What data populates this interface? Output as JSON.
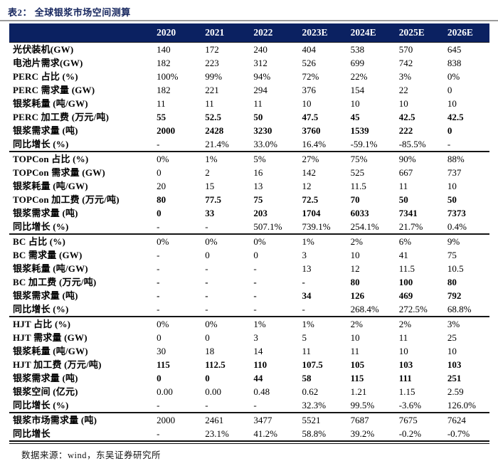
{
  "caption": "表2： 全球银浆市场空间测算",
  "source_note": "数据来源：wind，东吴证券研究所",
  "colors": {
    "header_bg": "#0b2161",
    "caption_text": "#16265e"
  },
  "table": {
    "year_columns": [
      "2020",
      "2021",
      "2022",
      "2023E",
      "2024E",
      "2025E",
      "2026E"
    ],
    "sections": [
      {
        "name": "perc",
        "rows": [
          {
            "label": "光伏装机(GW)",
            "bold": false,
            "values": [
              "140",
              "172",
              "240",
              "404",
              "538",
              "570",
              "645"
            ]
          },
          {
            "label": "电池片需求(GW)",
            "bold": false,
            "values": [
              "182",
              "223",
              "312",
              "526",
              "699",
              "742",
              "838"
            ]
          },
          {
            "label": "PERC 占比 (%)",
            "bold": false,
            "values": [
              "100%",
              "99%",
              "94%",
              "72%",
              "22%",
              "3%",
              "0%"
            ]
          },
          {
            "label": "PERC 需求量 (GW)",
            "bold": false,
            "values": [
              "182",
              "221",
              "294",
              "376",
              "154",
              "22",
              "0"
            ]
          },
          {
            "label": "银浆耗量 (吨/GW)",
            "bold": false,
            "values": [
              "11",
              "11",
              "11",
              "10",
              "10",
              "10",
              "10"
            ]
          },
          {
            "label": "PERC 加工费 (万元/吨)",
            "bold": true,
            "values": [
              "55",
              "52.5",
              "50",
              "47.5",
              "45",
              "42.5",
              "42.5"
            ]
          },
          {
            "label": "银浆需求量 (吨)",
            "bold": true,
            "values": [
              "2000",
              "2428",
              "3230",
              "3760",
              "1539",
              "222",
              "0"
            ]
          },
          {
            "label": "同比增长 (%)",
            "bold": false,
            "values": [
              "-",
              "21.4%",
              "33.0%",
              "16.4%",
              "-59.1%",
              "-85.5%",
              "-"
            ]
          }
        ]
      },
      {
        "name": "topcon",
        "rows": [
          {
            "label": "TOPCon 占比 (%)",
            "bold": false,
            "values": [
              "0%",
              "1%",
              "5%",
              "27%",
              "75%",
              "90%",
              "88%"
            ]
          },
          {
            "label": "TOPCon 需求量 (GW)",
            "bold": false,
            "values": [
              "0",
              "2",
              "16",
              "142",
              "525",
              "667",
              "737"
            ]
          },
          {
            "label": "银浆耗量 (吨/GW)",
            "bold": false,
            "values": [
              "20",
              "15",
              "13",
              "12",
              "11.5",
              "11",
              "10"
            ]
          },
          {
            "label": "TOPCon 加工费 (万元/吨)",
            "bold": true,
            "values": [
              "80",
              "77.5",
              "75",
              "72.5",
              "70",
              "50",
              "50"
            ]
          },
          {
            "label": "银浆需求量 (吨)",
            "bold": true,
            "values": [
              "0",
              "33",
              "203",
              "1704",
              "6033",
              "7341",
              "7373"
            ]
          },
          {
            "label": "同比增长 (%)",
            "bold": false,
            "values": [
              "-",
              "-",
              "507.1%",
              "739.1%",
              "254.1%",
              "21.7%",
              "0.4%"
            ]
          }
        ]
      },
      {
        "name": "bc",
        "rows": [
          {
            "label": "BC 占比 (%)",
            "bold": false,
            "values": [
              "0%",
              "0%",
              "0%",
              "1%",
              "2%",
              "6%",
              "9%"
            ]
          },
          {
            "label": "BC 需求量 (GW)",
            "bold": false,
            "values": [
              "-",
              "0",
              "0",
              "3",
              "10",
              "41",
              "75"
            ]
          },
          {
            "label": "银浆耗量 (吨/GW)",
            "bold": false,
            "values": [
              "-",
              "-",
              "-",
              "13",
              "12",
              "11.5",
              "10.5"
            ]
          },
          {
            "label": "BC 加工费 (万元/吨)",
            "bold": true,
            "values": [
              "-",
              "-",
              "-",
              "-",
              "80",
              "100",
              "80"
            ]
          },
          {
            "label": "银浆需求量 (吨)",
            "bold": true,
            "values": [
              "-",
              "-",
              "-",
              "34",
              "126",
              "469",
              "792"
            ]
          },
          {
            "label": "同比增长 (%)",
            "bold": false,
            "values": [
              "-",
              "-",
              "-",
              "-",
              "268.4%",
              "272.5%",
              "68.8%"
            ]
          }
        ]
      },
      {
        "name": "hjt",
        "rows": [
          {
            "label": "HJT 占比 (%)",
            "bold": false,
            "values": [
              "0%",
              "0%",
              "1%",
              "1%",
              "2%",
              "2%",
              "3%"
            ]
          },
          {
            "label": "HJT 需求量 (GW)",
            "bold": false,
            "values": [
              "0",
              "0",
              "3",
              "5",
              "10",
              "11",
              "25"
            ]
          },
          {
            "label": "银浆耗量 (吨/GW)",
            "bold": false,
            "values": [
              "30",
              "18",
              "14",
              "11",
              "11",
              "10",
              "10"
            ]
          },
          {
            "label": "HJT 加工费 (万元/吨)",
            "bold": true,
            "values": [
              "115",
              "112.5",
              "110",
              "107.5",
              "105",
              "103",
              "103"
            ]
          },
          {
            "label": "银浆需求量 (吨)",
            "bold": true,
            "values": [
              "0",
              "0",
              "44",
              "58",
              "115",
              "111",
              "251"
            ]
          },
          {
            "label": "银浆空间 (亿元)",
            "bold": false,
            "values": [
              "0.00",
              "0.00",
              "0.48",
              "0.62",
              "1.21",
              "1.15",
              "2.59"
            ]
          },
          {
            "label": "同比增长 (%)",
            "bold": false,
            "values": [
              "-",
              "-",
              "-",
              "32.3%",
              "99.5%",
              "-3.6%",
              "126.0%"
            ]
          }
        ]
      },
      {
        "name": "total",
        "rows": [
          {
            "label": "银浆市场需求量 (吨)",
            "bold": false,
            "values": [
              "2000",
              "2461",
              "3477",
              "5521",
              "7687",
              "7675",
              "7624"
            ]
          },
          {
            "label": "同比增长",
            "bold": false,
            "values": [
              "-",
              "23.1%",
              "41.2%",
              "58.8%",
              "39.2%",
              "-0.2%",
              "-0.7%"
            ]
          }
        ]
      }
    ]
  }
}
